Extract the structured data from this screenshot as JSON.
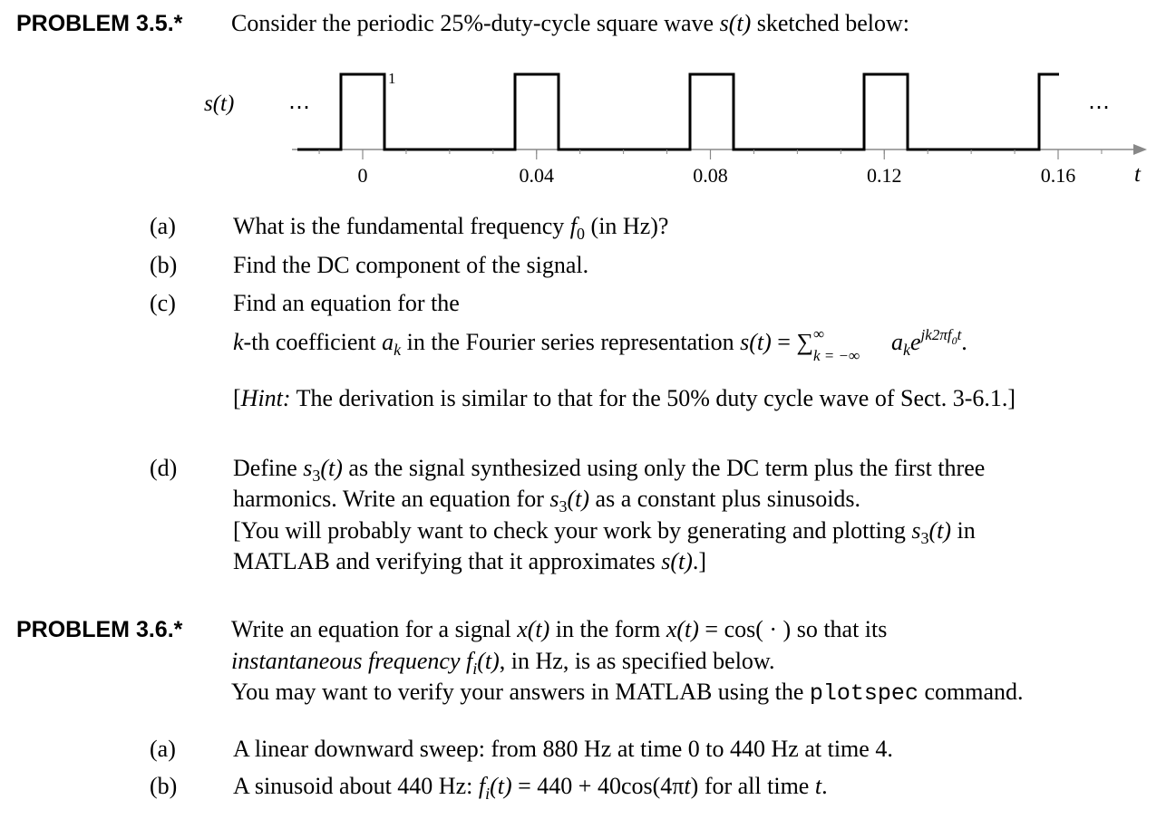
{
  "problems": [
    {
      "label": "PROBLEM 3.5.*",
      "intro": [
        "Consider the periodic 25%-duty-cycle square wave ",
        "s(t)",
        " sketched below:"
      ],
      "figure": {
        "y_label": "s(t)",
        "x_label": "t",
        "amplitude_label": "1",
        "ellipsis_left": "⋯",
        "ellipsis_right": "⋯",
        "xticks": [
          0,
          0.04,
          0.08,
          0.12,
          0.16
        ]
      },
      "items": [
        {
          "label": "(a)",
          "lines": [
            [
              "What is the fundamental frequency ",
              "f",
              "0",
              " (in Hz)?"
            ]
          ]
        },
        {
          "label": "(b)",
          "lines": [
            [
              "Find the DC component of the signal."
            ]
          ]
        },
        {
          "label": "(c)",
          "lines": [
            [
              "Find an equation for the"
            ],
            [
              "k",
              "-th coefficient ",
              "a",
              "k",
              " in the Fourier series representation ",
              "s(t)",
              " = ",
              "∑",
              "∞",
              "k = −∞",
              "a",
              "k",
              "e",
              "jk2πf",
              "0",
              "t",
              "."
            ],
            [
              "[",
              "Hint:",
              " The derivation is similar to that for the 50% duty cycle wave of Sect. 3-6.1.]"
            ]
          ]
        },
        {
          "label": "(d)",
          "lines": [
            [
              "Define ",
              "s",
              "3",
              "(t)",
              " as the signal synthesized using only the DC term plus the first three"
            ],
            [
              "harmonics. Write an equation for ",
              "s",
              "3",
              "(t)",
              " as a constant plus sinusoids."
            ],
            [
              "[You will probably want to check your work by generating and plotting ",
              "s",
              "3",
              "(t)",
              " in"
            ],
            [
              "MATLAB and verifying that it approximates ",
              "s(t)",
              ".]"
            ]
          ]
        }
      ]
    },
    {
      "label": "PROBLEM 3.6.*",
      "lines": [
        [
          "Write an equation for a signal ",
          "x(t)",
          " in the form ",
          "x(t)",
          " = cos(  ·  ) so that its"
        ],
        [
          "instantaneous frequency",
          " ",
          "f",
          "i",
          "(t)",
          ", in Hz, is as specified below."
        ],
        [
          "You may want to verify your answers in MATLAB using the ",
          "plotspec",
          " command."
        ]
      ],
      "items": [
        {
          "label": "(a)",
          "lines": [
            [
              "A linear downward sweep: from 880 Hz at time 0 to 440 Hz at time 4."
            ]
          ]
        },
        {
          "label": "(b)",
          "lines": [
            [
              "A sinusoid about 440 Hz: ",
              "f",
              "i",
              "(t)",
              " = 440 + 40cos(4π",
              "t",
              ") for all time ",
              "t",
              "."
            ]
          ]
        }
      ]
    }
  ]
}
